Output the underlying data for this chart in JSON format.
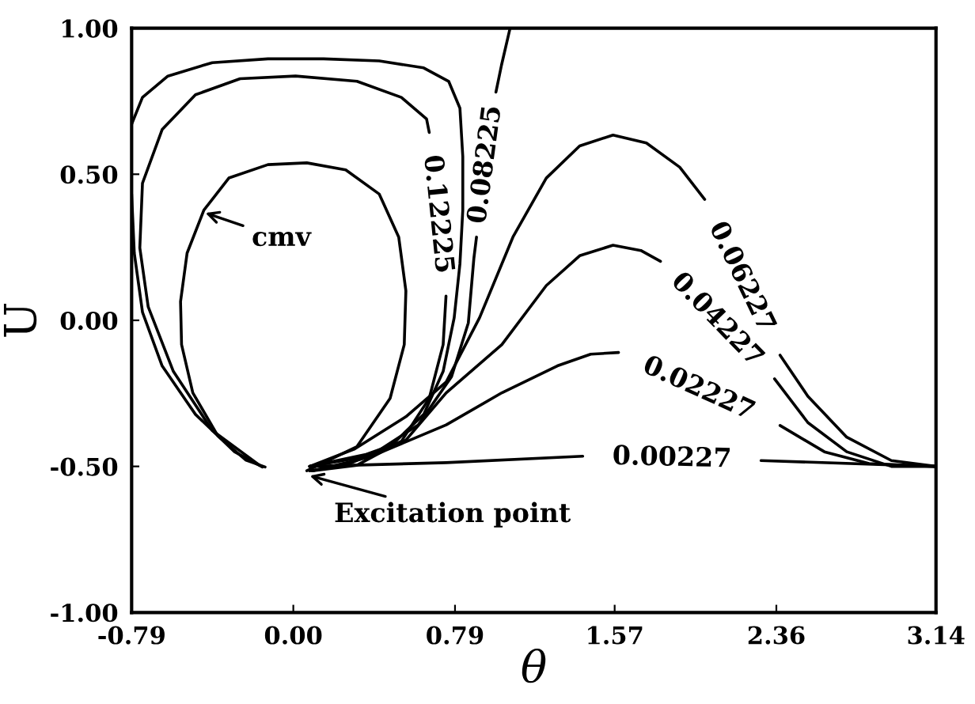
{
  "chart_data": {
    "type": "line",
    "xlabel": "θ",
    "ylabel": "U",
    "xlim": [
      -0.79,
      3.14
    ],
    "ylim": [
      -1.0,
      1.0
    ],
    "xticks": [
      {
        "value": -0.79,
        "label": "-0.79"
      },
      {
        "value": 0,
        "label": "0.00"
      },
      {
        "value": 0.79,
        "label": "0.79"
      },
      {
        "value": 1.57,
        "label": "1.57"
      },
      {
        "value": 2.36,
        "label": "2.36"
      },
      {
        "value": 3.14,
        "label": "3.14"
      }
    ],
    "yticks": [
      {
        "value": -1.0,
        "label": "-1.00"
      },
      {
        "value": -0.5,
        "label": "-0.50"
      },
      {
        "value": 0,
        "label": "0.00"
      },
      {
        "value": 0.5,
        "label": "0.50"
      },
      {
        "value": 1.0,
        "label": "1.00"
      }
    ],
    "grid": false,
    "legend": false,
    "marker": "none",
    "line_style": "solid",
    "series": [
      {
        "color": "#000000",
        "x": [
          0.066,
          0.311,
          0.473,
          0.542,
          0.55,
          0.515,
          0.42,
          0.256,
          0.066,
          -0.124,
          -0.315,
          -0.437,
          -0.519,
          -0.551,
          -0.546,
          -0.491,
          -0.369,
          -0.233,
          -0.138
        ],
        "values": [
          -0.515,
          -0.432,
          -0.267,
          -0.083,
          0.101,
          0.285,
          0.432,
          0.515,
          0.539,
          0.533,
          0.487,
          0.377,
          0.23,
          0.064,
          -0.083,
          -0.248,
          -0.395,
          -0.478,
          -0.502
        ]
      },
      {
        "name": "0.12225",
        "color": "#000000",
        "x": [
          -0.165,
          -0.396,
          -0.586,
          -0.709,
          -0.75,
          -0.737,
          -0.641,
          -0.478,
          -0.26,
          0.011,
          0.311,
          0.528,
          0.651,
          0.664,
          0.705,
          0.746,
          0.732,
          0.664,
          0.528,
          0.311,
          0.093
        ],
        "values": [
          -0.496,
          -0.377,
          -0.175,
          0.046,
          0.248,
          0.469,
          0.653,
          0.772,
          0.827,
          0.836,
          0.818,
          0.763,
          0.689,
          0.643,
          null,
          0.083,
          -0.083,
          -0.267,
          -0.414,
          -0.496,
          -0.515
        ]
      },
      {
        "color": "#000000",
        "x": [
          -0.79,
          -0.737,
          -0.613,
          -0.396,
          -0.124,
          0.148,
          0.42,
          0.637,
          0.759,
          0.814,
          0.828,
          0.828,
          0.814,
          0.786,
          0.732,
          0.637,
          0.473,
          0.256,
          0.08
        ],
        "values": [
          0.671,
          0.763,
          0.836,
          0.882,
          0.895,
          0.895,
          0.888,
          0.864,
          0.818,
          0.726,
          0.561,
          0.377,
          0.193,
          0.009,
          -0.175,
          -0.322,
          -0.432,
          -0.496,
          -0.515
        ]
      },
      {
        "color": "#000000",
        "x": [
          -0.79,
          -0.777,
          -0.737,
          -0.641,
          -0.478,
          -0.287,
          -0.151
        ],
        "values": [
          0.432,
          0.23,
          0.028,
          -0.156,
          -0.322,
          -0.45,
          -0.502
        ]
      },
      {
        "name": "0.08225",
        "color": "#000000",
        "x": [
          0.093,
          0.365,
          0.61,
          0.773,
          0.855,
          0.882,
          0.895,
          0.94,
          0.99,
          1.017,
          1.059
        ],
        "values": [
          -0.515,
          -0.469,
          -0.358,
          -0.193,
          -0.009,
          0.211,
          0.285,
          null,
          0.781,
          0.873,
          1.0
        ]
      },
      {
        "name": "0.06227",
        "color": "#000000",
        "x": [
          0.08,
          0.3,
          0.55,
          0.747,
          0.91,
          1.073,
          1.236,
          1.399,
          1.562,
          1.725,
          1.888,
          2.01,
          2.19,
          2.378,
          2.514,
          2.704,
          2.922,
          3.14
        ],
        "values": [
          -0.5,
          -0.44,
          -0.33,
          -0.211,
          0.009,
          0.285,
          0.487,
          0.597,
          0.634,
          0.607,
          0.524,
          0.414,
          null,
          -0.119,
          -0.26,
          -0.4,
          -0.48,
          -0.5
        ]
      },
      {
        "name": "0.04227",
        "color": "#000000",
        "x": [
          0.08,
          0.35,
          0.55,
          0.747,
          1.019,
          1.236,
          1.399,
          1.562,
          1.698,
          1.794,
          2.07,
          2.351,
          2.514,
          2.704,
          2.922,
          3.14
        ],
        "values": [
          -0.5,
          -0.46,
          -0.41,
          -0.248,
          -0.083,
          0.119,
          0.221,
          0.257,
          0.239,
          0.202,
          null,
          -0.2,
          -0.35,
          -0.45,
          -0.5,
          -0.5
        ]
      },
      {
        "name": "0.02227",
        "color": "#000000",
        "x": [
          0.08,
          0.4,
          0.747,
          1.019,
          1.29,
          1.453,
          1.589,
          1.98,
          2.378,
          2.595,
          2.813,
          3.14
        ],
        "values": [
          -0.5,
          -0.46,
          -0.358,
          -0.248,
          -0.156,
          -0.116,
          -0.11,
          null,
          -0.36,
          -0.45,
          -0.49,
          -0.5
        ]
      },
      {
        "name": "0.00227",
        "color": "#000000",
        "x": [
          0.08,
          0.747,
          1.414,
          1.85,
          2.285,
          3.14
        ],
        "values": [
          -0.5,
          -0.487,
          -0.465,
          null,
          -0.48,
          -0.5
        ]
      }
    ],
    "annotations": [
      {
        "text": "cmv",
        "x": -0.44,
        "y": 0.37
      },
      {
        "text": "Excitation point",
        "x": 0.07,
        "y": -0.53
      }
    ]
  }
}
